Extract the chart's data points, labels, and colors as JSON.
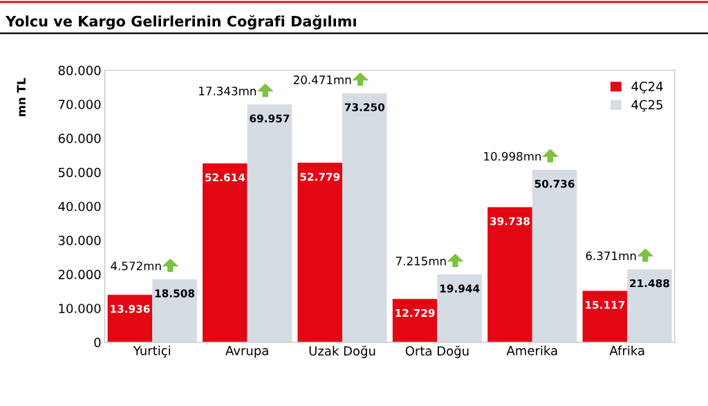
{
  "chart_data": {
    "type": "bar",
    "title": "Yolcu ve Kargo Gelirlerinin Coğrafi Dağılımı",
    "ylabel": "mn TL",
    "categories": [
      "Yurtiçi",
      "Avrupa",
      "Uzak Doğu",
      "Orta Doğu",
      "Amerika",
      "Afrika"
    ],
    "series": [
      {
        "name": "4Ç24",
        "color": "#e30613",
        "values": [
          13936,
          52614,
          52779,
          12729,
          39738,
          15117
        ],
        "value_labels": [
          "13.936",
          "52.614",
          "52.779",
          "12.729",
          "39.738",
          "15.117"
        ]
      },
      {
        "name": "4Ç25",
        "color": "#d6dce4",
        "values": [
          18508,
          69957,
          73250,
          19944,
          50736,
          21488
        ],
        "value_labels": [
          "18.508",
          "69.957",
          "73.250",
          "19.944",
          "50.736",
          "21.488"
        ]
      }
    ],
    "ylim": [
      0,
      80000
    ],
    "yticks": [
      0,
      {
        "value": 10000,
        "label": "10.000"
      },
      {
        "value": 20000,
        "label": "20.000"
      },
      {
        "value": 30000,
        "label": "30.000"
      },
      {
        "value": 40000,
        "label": "40.000"
      },
      {
        "value": 50000,
        "label": "50.000"
      },
      {
        "value": 60000,
        "label": "60.000"
      },
      {
        "value": 70000,
        "label": "70.000"
      },
      {
        "value": 80000,
        "label": "80.000"
      }
    ],
    "annotations": [
      {
        "text": "4.572mn",
        "x": "Yurtiçi",
        "y": 18508
      },
      {
        "text": "17.343mn",
        "x": "Avrupa",
        "y": 69957
      },
      {
        "text": "20.471mn",
        "x": "Uzak Doğu",
        "y": 73250
      },
      {
        "text": "7.215mn",
        "x": "Orta Doğu",
        "y": 19944
      },
      {
        "text": "10.998mn",
        "x": "Amerika",
        "y": 50736
      },
      {
        "text": "6.371mn",
        "x": "Afrika",
        "y": 21488
      }
    ],
    "grid": false,
    "legend": "top right"
  }
}
